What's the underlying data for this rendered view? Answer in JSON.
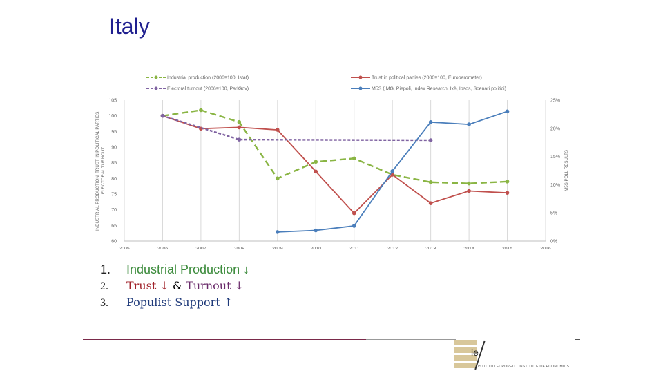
{
  "slide": {
    "title": "Italy"
  },
  "list": [
    {
      "num": "1.",
      "text": "Industrial Production",
      "arrow": "↓"
    },
    {
      "num": "2.",
      "text_a": "Trust",
      "arrow_a": "↓",
      "amp": "&",
      "text_b": "Turnout",
      "arrow_b": "↓"
    },
    {
      "num": "3.",
      "text": "Populist Support",
      "arrow": "↑"
    }
  ],
  "logo": {
    "text": "ie",
    "tagline": "ISTITUTO EUROPEO · INSTITUTE OF ECONOMICS"
  },
  "colors": {
    "title": "#1f1f8f",
    "industrial": "#8ab544",
    "trust": "#c0504d",
    "turnout": "#8064a2",
    "m5s": "#4a7ebb"
  },
  "chart_data": {
    "type": "line",
    "xlim": [
      2005,
      2016
    ],
    "x_ticks": [
      "2005",
      "2006",
      "2007",
      "2008",
      "2009",
      "2010",
      "2011",
      "2012",
      "2013",
      "2014",
      "2015",
      "2016"
    ],
    "ylim": [
      60,
      105
    ],
    "y_ticks": [
      "60",
      "65",
      "70",
      "75",
      "80",
      "85",
      "90",
      "95",
      "100",
      "105"
    ],
    "ylabel": "INDUSTRIAL PRODUCTION, TRUST IN POLITICAL PARTIES, ELECTORAL TURNOUT",
    "y2lim": [
      0,
      25
    ],
    "y2_ticks": [
      "0%",
      "5%",
      "10%",
      "15%",
      "20%",
      "25%"
    ],
    "y2label": "M5S POLL RESULTS",
    "grid": "vertical",
    "legend": "top",
    "series": [
      {
        "name": "Industrial production (2006=100, Istat)",
        "axis": "left",
        "style": "dashed",
        "color": "#8ab544",
        "x": [
          2006,
          2007,
          2008,
          2009,
          2010,
          2011,
          2012,
          2013,
          2014,
          2015
        ],
        "y": [
          100,
          101.8,
          98,
          80,
          85.3,
          86.4,
          81.2,
          78.8,
          78.4,
          79
        ]
      },
      {
        "name": "Trust in political parties (2006=100, Eurobarometer)",
        "axis": "left",
        "style": "solid",
        "color": "#c0504d",
        "x": [
          2006,
          2007,
          2008,
          2009,
          2010,
          2011,
          2012,
          2013,
          2014,
          2015
        ],
        "y": [
          100,
          95.9,
          96.3,
          95.5,
          82.2,
          68.9,
          81.2,
          72.1,
          76,
          75.4
        ]
      },
      {
        "name": "Electoral turnout (2006=100, ParlGov)",
        "axis": "left",
        "style": "dashed",
        "color": "#8064a2",
        "x": [
          2006,
          2008,
          2013
        ],
        "y": [
          100,
          92.4,
          92.2
        ]
      },
      {
        "name": "M5S (IMG, Piepoli, Index Research, Ixè, Ipsos, Scenari politici)",
        "axis": "right",
        "style": "solid",
        "color": "#4a7ebb",
        "x": [
          2009,
          2010,
          2011,
          2012,
          2013,
          2014,
          2015
        ],
        "y": [
          1.6,
          1.9,
          2.7,
          12.4,
          21.1,
          20.7,
          23
        ]
      }
    ]
  }
}
